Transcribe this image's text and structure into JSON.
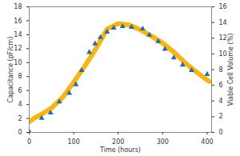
{
  "chart_data": {
    "type": "line",
    "xlabel": "Time (hours)",
    "ylabel": "Capacitance (pF/cm)",
    "y2label": "Viable Cell Volume (%)",
    "xlim": [
      0,
      410
    ],
    "xticks": [
      0,
      100,
      200,
      300,
      400
    ],
    "ylim": [
      0,
      18
    ],
    "yticks": [
      0,
      2,
      4,
      6,
      8,
      10,
      12,
      14,
      16,
      18
    ],
    "y2lim": [
      0,
      16
    ],
    "y2ticks": [
      0,
      2,
      4,
      6,
      8,
      10,
      12,
      14,
      16
    ],
    "grid": false,
    "series": [
      {
        "type": "line",
        "color": "#f6b616",
        "x": [
          0,
          10,
          25,
          50,
          75,
          100,
          125,
          150,
          175,
          200,
          225,
          250,
          275,
          300,
          325,
          350,
          375,
          400,
          405
        ],
        "values": [
          1.5,
          2.0,
          2.5,
          3.5,
          5.0,
          7.2,
          9.5,
          12.0,
          14.8,
          15.6,
          15.4,
          14.7,
          13.8,
          12.8,
          11.5,
          10.0,
          8.7,
          7.5,
          7.3
        ]
      },
      {
        "type": "scatter",
        "marker": "triangle",
        "color": "#2a6aa8",
        "axis": "y2",
        "x": [
          0,
          28,
          48,
          68,
          90,
          105,
          118,
          135,
          148,
          160,
          175,
          190,
          210,
          230,
          255,
          270,
          290,
          305,
          325,
          345,
          365,
          400
        ],
        "values": [
          0.1,
          1.8,
          2.5,
          3.9,
          5.0,
          6.1,
          7.9,
          10.2,
          11.3,
          12.1,
          12.8,
          13.3,
          13.5,
          13.4,
          13.2,
          12.4,
          11.6,
          10.6,
          9.5,
          8.6,
          7.9,
          7.4
        ]
      }
    ]
  }
}
